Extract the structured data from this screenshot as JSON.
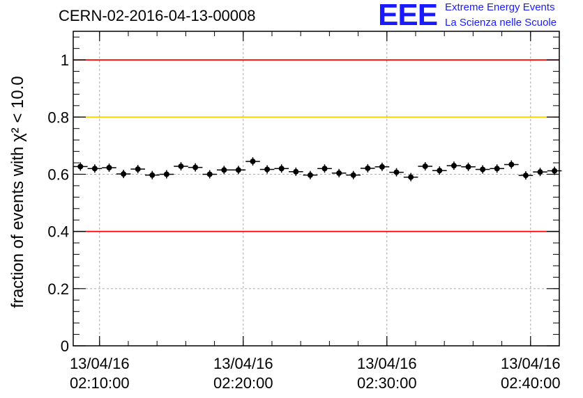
{
  "header": {
    "title": "CERN-02-2016-04-13-00008",
    "logo_text": "EEE",
    "logo_line1": "Extreme Energy Events",
    "logo_line2": "La Scienza nelle Scuole"
  },
  "colors": {
    "points": "#000000",
    "limit_line": "#ff0000",
    "warning_line": "#ffcc00",
    "grid": "#aaaaaa",
    "logo": "#1a1aff"
  },
  "chart_data": {
    "type": "scatter",
    "title": "CERN-02-2016-04-13-00008",
    "ylabel": "fraction of events with χ² < 10.0",
    "xlabel": "",
    "xlim": [
      "13/04/16 02:08:10",
      "13/04/16 02:42:00"
    ],
    "ylim": [
      0,
      1.1
    ],
    "yticks": [
      0,
      0.2,
      0.4,
      0.6,
      0.8,
      1
    ],
    "ytick_labels": [
      "0",
      "0.2",
      "0.4",
      "0.6",
      "0.8",
      "1"
    ],
    "xticks": [
      "13/04/16 02:10:00",
      "13/04/16 02:20:00",
      "13/04/16 02:30:00",
      "13/04/16 02:40:00"
    ],
    "xtick_labels": [
      [
        "13/04/16",
        "02:10:00"
      ],
      [
        "13/04/16",
        "02:20:00"
      ],
      [
        "13/04/16",
        "02:30:00"
      ],
      [
        "13/04/16",
        "02:40:00"
      ]
    ],
    "grid": true,
    "reference_lines": [
      {
        "y": 1.0,
        "color": "#ff0000"
      },
      {
        "y": 0.8,
        "color": "#ffcc00"
      },
      {
        "y": 0.4,
        "color": "#ff0000"
      }
    ],
    "series": [
      {
        "x_start": "13/04/16 02:08:10",
        "bin_seconds": 60,
        "values": [
          0.627,
          0.62,
          0.623,
          0.601,
          0.618,
          0.597,
          0.6,
          0.628,
          0.624,
          0.6,
          0.615,
          0.615,
          0.645,
          0.617,
          0.62,
          0.609,
          0.597,
          0.62,
          0.604,
          0.597,
          0.621,
          0.626,
          0.607,
          0.59,
          0.628,
          0.613,
          0.63,
          0.626,
          0.617,
          0.62,
          0.634,
          0.596,
          0.608,
          0.612
        ]
      }
    ]
  }
}
